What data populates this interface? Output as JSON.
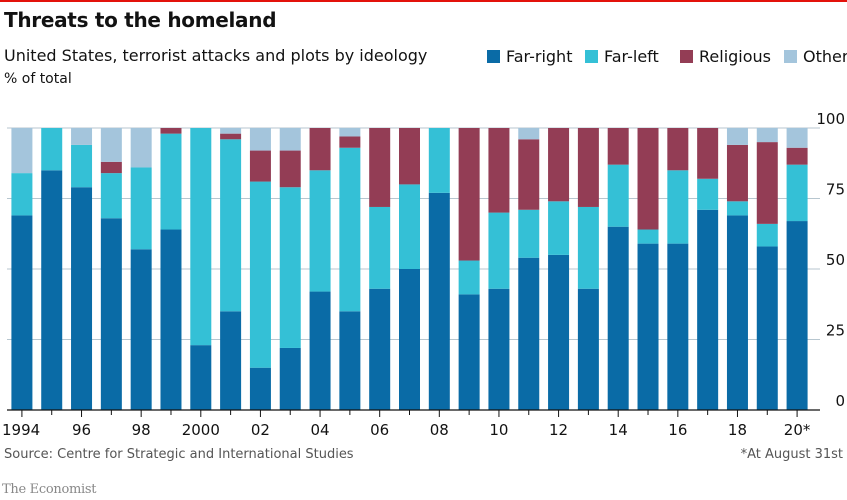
{
  "header": {
    "title": "Threats to the homeland",
    "subtitle": "United States, terrorist attacks and plots by ideology",
    "unit": "% of total"
  },
  "legend": [
    {
      "name": "Far-right",
      "color": "#0a6ba6"
    },
    {
      "name": "Far-left",
      "color": "#34c0d6"
    },
    {
      "name": "Religious",
      "color": "#933d55"
    },
    {
      "name": "Other",
      "color": "#a4c5dc"
    }
  ],
  "footer": {
    "source": "Source: Centre for Strategic and International Studies",
    "note": "*At August 31st",
    "brand": "The Economist"
  },
  "chart_data": {
    "type": "bar",
    "stacked": true,
    "title": "Threats to the homeland",
    "subtitle": "United States, terrorist attacks and plots by ideology",
    "ylabel": "% of total",
    "ylim": [
      0,
      100
    ],
    "yticks": [
      0,
      25,
      50,
      75,
      100
    ],
    "xtick_labels": [
      "1994",
      "96",
      "98",
      "2000",
      "02",
      "04",
      "06",
      "08",
      "10",
      "12",
      "14",
      "16",
      "18",
      "20*"
    ],
    "categories": [
      "1994",
      "1995",
      "1996",
      "1997",
      "1998",
      "1999",
      "2000",
      "2001",
      "2002",
      "2003",
      "2004",
      "2005",
      "2006",
      "2007",
      "2008",
      "2009",
      "2010",
      "2011",
      "2012",
      "2013",
      "2014",
      "2015",
      "2016",
      "2017",
      "2018",
      "2019",
      "2020"
    ],
    "series": [
      {
        "name": "Far-right",
        "color": "#0a6ba6",
        "values": [
          69,
          85,
          79,
          68,
          57,
          64,
          23,
          35,
          15,
          22,
          42,
          35,
          43,
          50,
          77,
          41,
          43,
          54,
          55,
          43,
          65,
          59,
          59,
          71,
          69,
          58,
          67
        ]
      },
      {
        "name": "Far-left",
        "color": "#34c0d6",
        "values": [
          15,
          15,
          15,
          16,
          29,
          34,
          77,
          61,
          66,
          57,
          43,
          58,
          29,
          30,
          23,
          12,
          27,
          17,
          19,
          29,
          22,
          5,
          26,
          11,
          5,
          8,
          20
        ]
      },
      {
        "name": "Religious",
        "color": "#933d55",
        "values": [
          0,
          0,
          0,
          4,
          0,
          2,
          0,
          2,
          11,
          13,
          15,
          4,
          28,
          20,
          0,
          47,
          30,
          25,
          26,
          28,
          13,
          36,
          15,
          18,
          20,
          29,
          6
        ]
      },
      {
        "name": "Other",
        "color": "#a4c5dc",
        "values": [
          16,
          0,
          6,
          12,
          14,
          0,
          0,
          2,
          8,
          8,
          0,
          3,
          0,
          0,
          0,
          0,
          0,
          4,
          0,
          0,
          0,
          0,
          0,
          0,
          6,
          5,
          7
        ]
      }
    ]
  }
}
